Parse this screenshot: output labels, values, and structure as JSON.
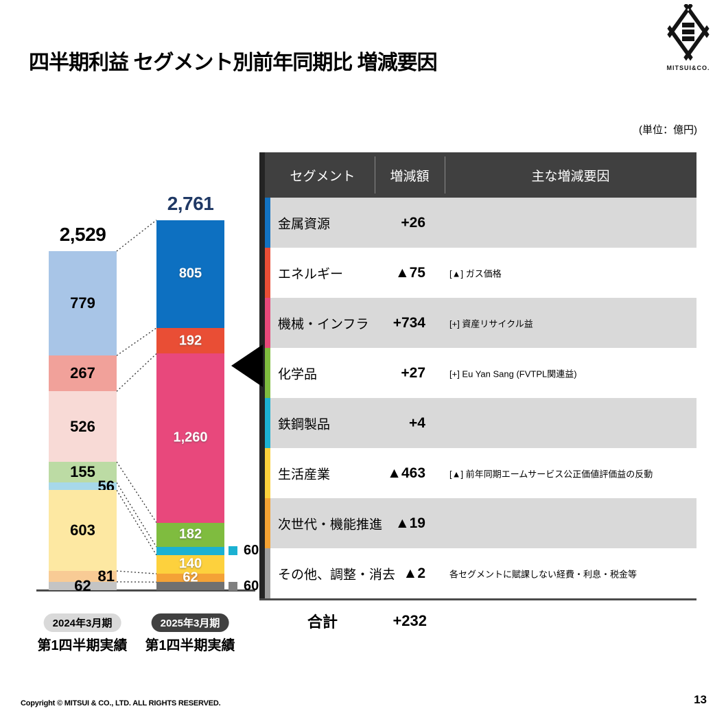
{
  "page": {
    "title": "四半期利益 セグメント別前年同期比 増減要因",
    "unit_note": "(単位：億円)",
    "copyright": "Copyright © MITSUI & CO., LTD. ALL RIGHTS RESERVED.",
    "page_number": "13"
  },
  "logo": {
    "company": "MITSUI & CO.",
    "wordmark": "MITSUI&CO."
  },
  "colors": {
    "header_bg": "#404040",
    "row_stripe": "#D9D9D9",
    "total_2025_text": "#1F3864",
    "axis_line": "#4a4a4a",
    "connector": "#3a3a3a",
    "pointer": "#000000"
  },
  "chart_data": {
    "type": "bar",
    "subtype": "stacked_comparison_waterfall",
    "unit": "億円",
    "segment_order": "top_to_bottom",
    "segments": [
      "金属資源",
      "エネルギー",
      "機械・インフラ",
      "化学品",
      "鉄鋼製品",
      "生活産業",
      "次世代・機能推進",
      "その他、調整・消去"
    ],
    "series": [
      {
        "period_label": "2024年3月期",
        "period_sublabel": "第1四半期実績",
        "total": 2529,
        "total_label": "2,529",
        "values": [
          779,
          267,
          526,
          155,
          56,
          603,
          81,
          62
        ],
        "labels": [
          "779",
          "267",
          "526",
          "155",
          "56",
          "603",
          "81",
          "62"
        ],
        "colors": [
          "#A8C5E7",
          "#F1A19A",
          "#F8DAD6",
          "#BCDBA4",
          "#A7D8EA",
          "#FDE8A2",
          "#F8CB95",
          "#C4C4C4"
        ],
        "label_pos": [
          "in",
          "in",
          "in",
          "in",
          "edge",
          "in",
          "edge",
          "in"
        ],
        "label_color": "black"
      },
      {
        "period_label": "2025年3月期",
        "period_sublabel": "第1四半期実績",
        "total": 2761,
        "total_label": "2,761",
        "values": [
          805,
          192,
          1260,
          182,
          60,
          140,
          62,
          60
        ],
        "labels": [
          "805",
          "192",
          "1,260",
          "182",
          "60",
          "140",
          "62",
          "60"
        ],
        "colors": [
          "#0D70C1",
          "#E94E35",
          "#E8487C",
          "#7FBC3F",
          "#1BB1D2",
          "#FDD13D",
          "#F4A236",
          "#707070"
        ],
        "label_pos": [
          "in",
          "in",
          "in",
          "in",
          "out",
          "in",
          "in",
          "out"
        ],
        "out_swatch_colors": [
          "",
          "",
          "",
          "",
          "#1BB1D2",
          "",
          "",
          "#808080"
        ],
        "label_color": "white"
      }
    ]
  },
  "table": {
    "headers": [
      "セグメント",
      "増減額",
      "主な増減要因"
    ],
    "rows": [
      {
        "segment": "金属資源",
        "change": "+26",
        "factor": "",
        "accent": "#1272C2"
      },
      {
        "segment": "エネルギー",
        "change": "▲75",
        "factor": "[▲] ガス価格",
        "accent": "#EA4E36"
      },
      {
        "segment": "機械・インフラ",
        "change": "+734",
        "factor": "[+] 資産リサイクル益",
        "accent": "#E8497B"
      },
      {
        "segment": "化学品",
        "change": "+27",
        "factor": "[+] Eu Yan Sang (FVTPL関連益)",
        "accent": "#7FBC3F"
      },
      {
        "segment": "鉄鋼製品",
        "change": "+4",
        "factor": "",
        "accent": "#1CB2D3"
      },
      {
        "segment": "生活産業",
        "change": "▲463",
        "factor": "[▲] 前年同期エームサービス公正価値評価益の反動",
        "accent": "#FDD13C"
      },
      {
        "segment": "次世代・機能推進",
        "change": "▲19",
        "factor": "",
        "accent": "#F5A233"
      },
      {
        "segment": "その他、調整・消去",
        "change": "▲2",
        "factor": "各セグメントに賦課しない経費・利息・税金等",
        "accent": "#A0A0A0"
      }
    ],
    "total": {
      "label": "合計",
      "change": "+232"
    }
  }
}
